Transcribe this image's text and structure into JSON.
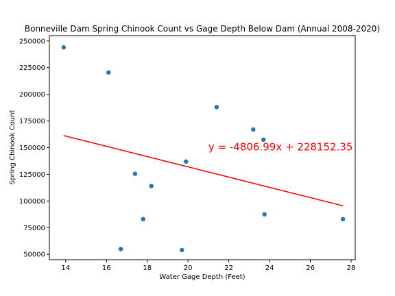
{
  "chart_data": {
    "type": "scatter",
    "title": "Bonneville Dam Spring Chinook Count vs Gage Depth Below Dam (Annual 2008-2020)",
    "xlabel": "Water Gage Depth (Feet)",
    "ylabel": "Spring Chinook Count",
    "xlim": [
      13.2,
      28.2
    ],
    "ylim": [
      45000,
      255000
    ],
    "x_ticks": [
      14,
      16,
      18,
      20,
      22,
      24,
      26,
      28
    ],
    "y_ticks": [
      50000,
      75000,
      100000,
      125000,
      150000,
      175000,
      200000,
      225000,
      250000
    ],
    "y_tick_labels": [
      "50000",
      "75000",
      "100000",
      "125000",
      "150000",
      "175000",
      "200000",
      "225000",
      "250000"
    ],
    "grid": false,
    "points": [
      {
        "x": 13.9,
        "y": 244000
      },
      {
        "x": 16.1,
        "y": 220500
      },
      {
        "x": 16.7,
        "y": 55000
      },
      {
        "x": 17.4,
        "y": 125500
      },
      {
        "x": 17.8,
        "y": 83000
      },
      {
        "x": 18.2,
        "y": 114000
      },
      {
        "x": 19.7,
        "y": 54000
      },
      {
        "x": 19.9,
        "y": 137000
      },
      {
        "x": 21.4,
        "y": 188000
      },
      {
        "x": 23.2,
        "y": 167000
      },
      {
        "x": 23.7,
        "y": 157500
      },
      {
        "x": 23.75,
        "y": 87500
      },
      {
        "x": 27.6,
        "y": 83000
      }
    ],
    "regression": {
      "slope": -4806.99,
      "intercept": 228152.35,
      "x_range": [
        13.9,
        27.6
      ],
      "equation": "y = -4806.99x + 228152.35",
      "equation_anchor": {
        "x": 21.0,
        "y": 150500
      }
    },
    "colors": {
      "points": "#1f77b4",
      "regression": "#ff0000",
      "equation": "#ff0000"
    }
  }
}
